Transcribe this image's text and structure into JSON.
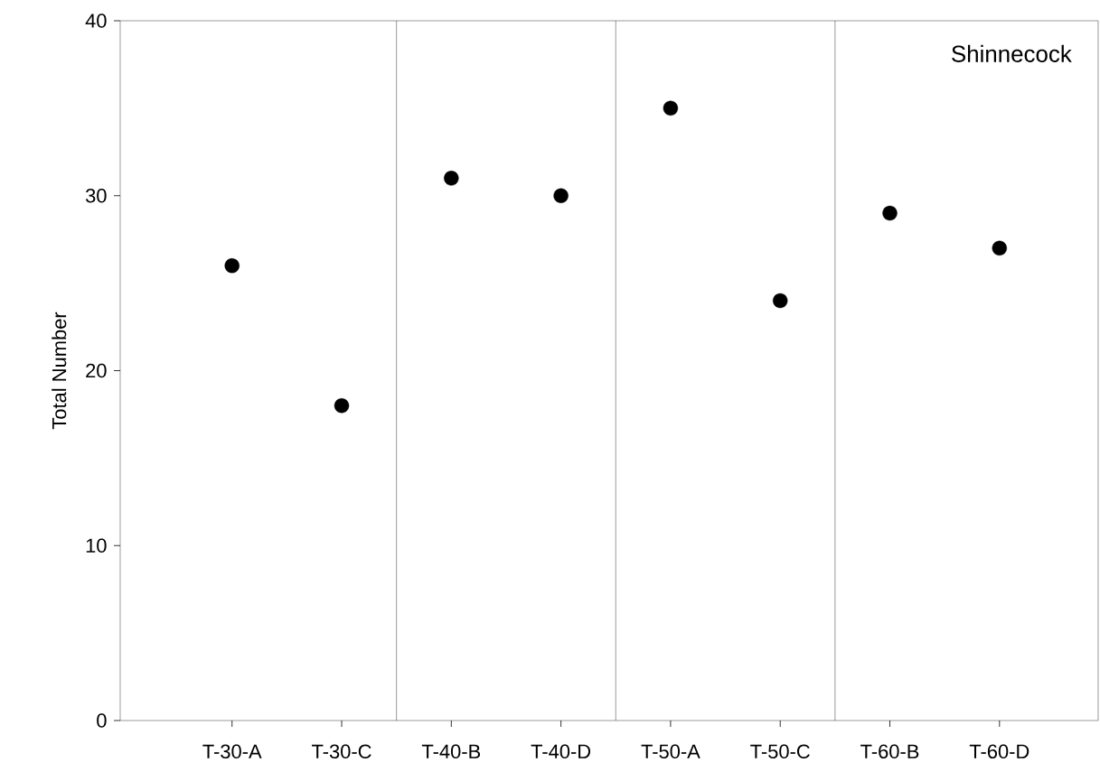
{
  "chart_data": {
    "type": "scatter",
    "ylabel": "Total Number",
    "categories": [
      "T-30-A",
      "T-30-C",
      "T-40-B",
      "T-40-D",
      "T-50-A",
      "T-50-C",
      "T-60-B",
      "T-60-D"
    ],
    "values": [
      26,
      18,
      31,
      30,
      35,
      24,
      29,
      27
    ],
    "color": "#000000",
    "marker": "circle",
    "ylim": [
      0,
      40
    ],
    "yticks": [
      0,
      10,
      20,
      30,
      40
    ],
    "annotations": [
      "Shinnecock"
    ]
  }
}
